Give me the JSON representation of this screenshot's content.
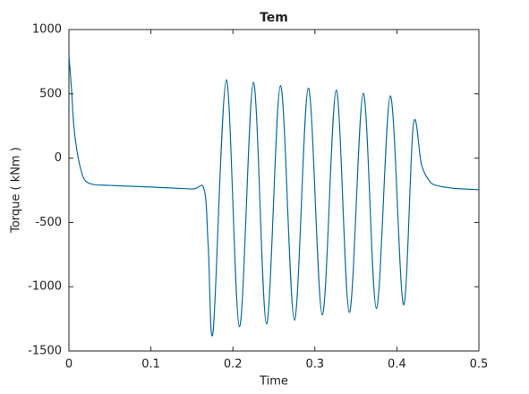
{
  "chart_data": {
    "type": "line",
    "title": "Tem",
    "xlabel": "Time",
    "ylabel": "Torque ( kNm )",
    "x": [
      0,
      0.003,
      0.006,
      0.01,
      0.015,
      0.02,
      0.03,
      0.05,
      0.1,
      0.15,
      0.165,
      0.17,
      0.176,
      0.192,
      0.208,
      0.225,
      0.241,
      0.258,
      0.275,
      0.292,
      0.309,
      0.326,
      0.342,
      0.359,
      0.375,
      0.392,
      0.408,
      0.42,
      0.43,
      0.44,
      0.45,
      0.47,
      0.5
    ],
    "series": [
      {
        "name": "Tem",
        "color": "#0b6aa2",
        "values": [
          800,
          550,
          250,
          50,
          -100,
          -175,
          -205,
          -212,
          -225,
          -240,
          -245,
          -700,
          -1340,
          610,
          -1310,
          590,
          -1290,
          565,
          -1260,
          545,
          -1220,
          530,
          -1200,
          505,
          -1170,
          485,
          -1140,
          255,
          -50,
          -180,
          -215,
          -235,
          -245
        ]
      }
    ],
    "xlim": [
      0,
      0.5
    ],
    "xticks": [
      0,
      0.1,
      0.2,
      0.3,
      0.4,
      0.5
    ],
    "ylim": [
      -1500,
      1000
    ],
    "yticks": [
      -1500,
      -1000,
      -500,
      0,
      500,
      1000
    ]
  }
}
